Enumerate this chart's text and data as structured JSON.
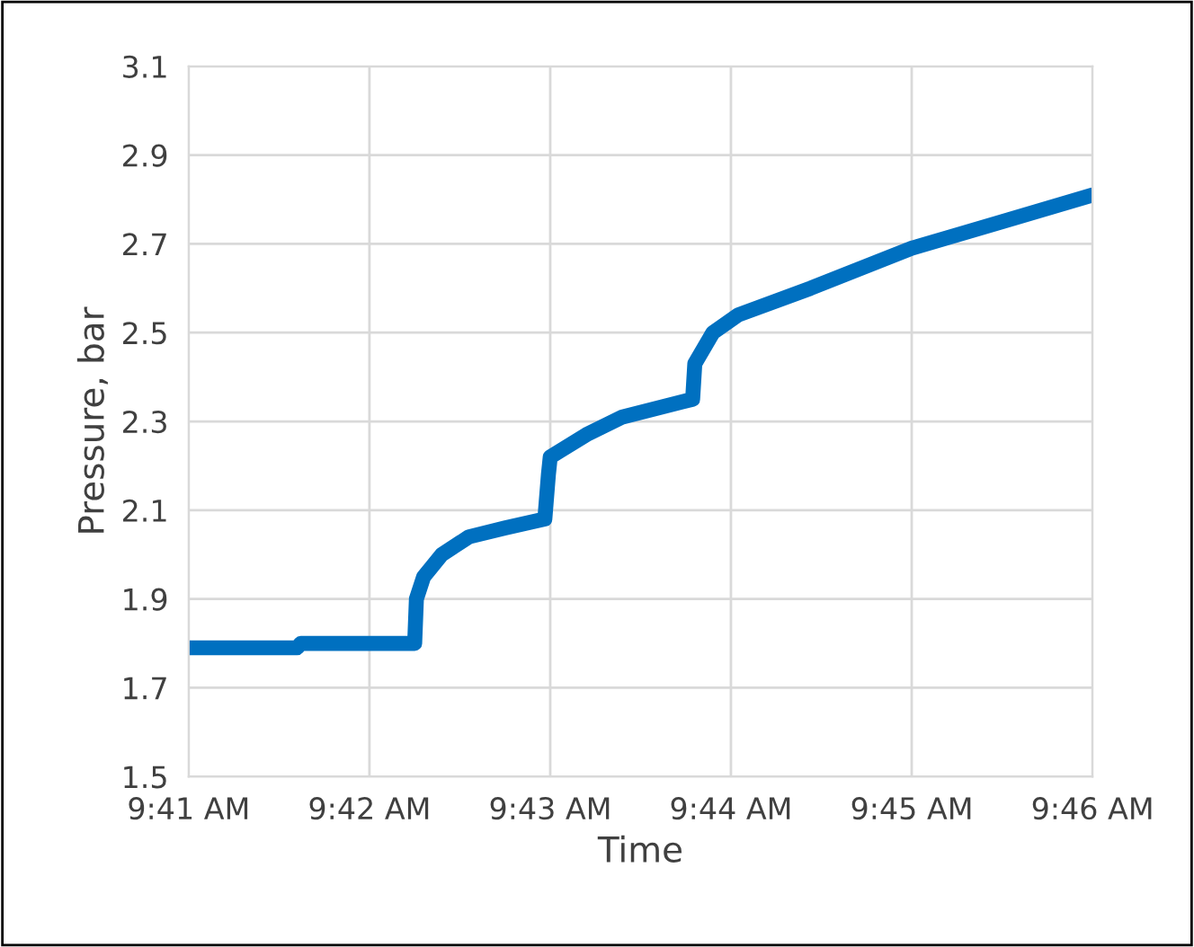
{
  "chart_data": {
    "type": "line",
    "xlabel": "Time",
    "ylabel": "Pressure, bar",
    "x": [
      9.68333,
      9.69333,
      9.69367,
      9.70417,
      9.70433,
      9.705,
      9.70667,
      9.70917,
      9.7125,
      9.71617,
      9.7165,
      9.71667,
      9.72,
      9.72333,
      9.7298,
      9.73,
      9.73167,
      9.734,
      9.74067,
      9.75,
      9.75833,
      9.76667
    ],
    "series": [
      {
        "color": "#0070c0",
        "values": [
          1.79,
          1.79,
          1.8,
          1.8,
          1.9,
          1.95,
          2.0,
          2.04,
          2.06,
          2.08,
          2.18,
          2.22,
          2.27,
          2.31,
          2.35,
          2.43,
          2.5,
          2.54,
          2.6,
          2.69,
          2.75,
          2.81
        ]
      }
    ],
    "xlim": [
      9.68333,
      9.76667
    ],
    "xticks": [
      {
        "value": 9.68333,
        "label": "9:41 AM"
      },
      {
        "value": 9.7,
        "label": "9:42 AM"
      },
      {
        "value": 9.71667,
        "label": "9:43 AM"
      },
      {
        "value": 9.73333,
        "label": "9:44 AM"
      },
      {
        "value": 9.75,
        "label": "9:45 AM"
      },
      {
        "value": 9.76667,
        "label": "9:46 AM"
      }
    ],
    "ylim": [
      1.5,
      3.1
    ],
    "yticks": [
      1.5,
      1.7,
      1.9,
      2.1,
      2.3,
      2.5,
      2.7,
      2.9,
      3.1
    ],
    "grid": true,
    "marker": "none",
    "line_style": "solid",
    "legend": false
  }
}
